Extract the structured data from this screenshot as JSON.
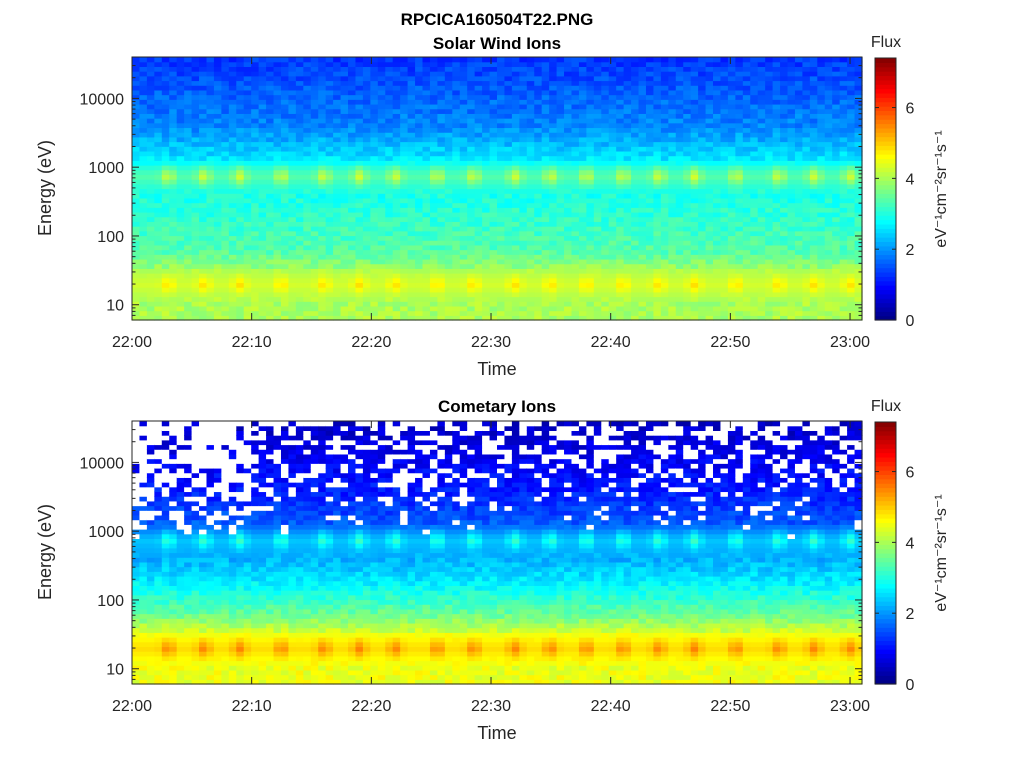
{
  "figure": {
    "title": "RPCICA160504T22.PNG"
  },
  "chart_data": [
    {
      "type": "heatmap",
      "title": "Solar Wind Ions",
      "xlabel": "Time",
      "ylabel": "Energy (eV)",
      "y_scale": "log",
      "xlim": [
        "22:00",
        "23:01"
      ],
      "ylim": [
        6,
        40000
      ],
      "x_ticks": [
        "22:00",
        "22:10",
        "22:20",
        "22:30",
        "22:40",
        "22:50",
        "23:00"
      ],
      "y_ticks": [
        {
          "value": 10,
          "label": "10"
        },
        {
          "value": 100,
          "label": "100"
        },
        {
          "value": 1000,
          "label": "1000"
        },
        {
          "value": 10000,
          "label": "10000"
        }
      ],
      "colorbar": {
        "title": "Flux",
        "units": "eV⁻¹cm⁻²sr⁻¹s⁻¹",
        "range": [
          0,
          7.4
        ],
        "colormap": "jet",
        "ticks": [
          "0",
          "2",
          "4",
          "6"
        ]
      },
      "features": {
        "pulse_times_min": [
          3,
          6,
          9,
          12.5,
          16,
          19,
          22,
          25.5,
          28.5,
          32,
          35,
          38,
          41,
          44,
          47,
          50.5,
          54,
          57,
          60
        ],
        "background_levels": [
          {
            "energy_eV": 6,
            "flux": 4.0
          },
          {
            "energy_eV": 30,
            "flux": 4.0
          },
          {
            "energy_eV": 60,
            "flux": 3.4
          },
          {
            "energy_eV": 200,
            "flux": 3.1
          },
          {
            "energy_eV": 1000,
            "flux": 2.8
          },
          {
            "energy_eV": 4000,
            "flux": 1.9
          },
          {
            "energy_eV": 40000,
            "flux": 1.3
          }
        ],
        "bands": [
          {
            "center_eV": 750,
            "flux": 4.4
          },
          {
            "center_eV": 20,
            "flux": 4.9
          }
        ],
        "gap_fraction": 0.0
      }
    },
    {
      "type": "heatmap",
      "title": "Cometary Ions",
      "xlabel": "Time",
      "ylabel": "Energy (eV)",
      "y_scale": "log",
      "xlim": [
        "22:00",
        "23:01"
      ],
      "ylim": [
        6,
        40000
      ],
      "x_ticks": [
        "22:00",
        "22:10",
        "22:20",
        "22:30",
        "22:40",
        "22:50",
        "23:00"
      ],
      "y_ticks": [
        {
          "value": 10,
          "label": "10"
        },
        {
          "value": 100,
          "label": "100"
        },
        {
          "value": 1000,
          "label": "1000"
        },
        {
          "value": 10000,
          "label": "10000"
        }
      ],
      "colorbar": {
        "title": "Flux",
        "units": "eV⁻¹cm⁻²sr⁻¹s⁻¹",
        "range": [
          0,
          7.4
        ],
        "colormap": "jet",
        "ticks": [
          "0",
          "2",
          "4",
          "6"
        ]
      },
      "features": {
        "pulse_times_min": [
          3,
          6,
          9,
          12.5,
          16,
          19,
          22,
          25.5,
          28.5,
          32,
          35,
          38,
          41,
          44,
          47,
          50.5,
          54,
          57,
          60
        ],
        "background_levels": [
          {
            "energy_eV": 6,
            "flux": 4.5
          },
          {
            "energy_eV": 30,
            "flux": 4.5
          },
          {
            "energy_eV": 60,
            "flux": 3.6
          },
          {
            "energy_eV": 200,
            "flux": 2.6
          },
          {
            "energy_eV": 1000,
            "flux": 1.7
          },
          {
            "energy_eV": 4000,
            "flux": 1.1
          },
          {
            "energy_eV": 40000,
            "flux": 0.5
          }
        ],
        "bands": [
          {
            "center_eV": 750,
            "flux": 3.3
          },
          {
            "center_eV": 20,
            "flux": 5.6
          }
        ],
        "gap_fraction": 0.22
      }
    }
  ]
}
